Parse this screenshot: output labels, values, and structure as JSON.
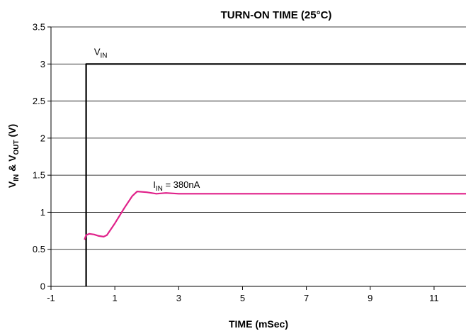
{
  "chart_data": {
    "type": "line",
    "title": "TURN-ON TIME (25°C)",
    "xlabel": "TIME (mSec)",
    "ylabel": {
      "parts": [
        {
          "text": "V",
          "sub": "IN"
        },
        {
          "text": " & V",
          "sub": "OUT"
        },
        {
          "text": " (V)",
          "sub": ""
        }
      ]
    },
    "xlim": [
      -1,
      12
    ],
    "ylim": [
      0,
      3.5
    ],
    "x_ticks": [
      -1,
      1,
      3,
      5,
      7,
      9,
      11
    ],
    "x_tick_labels": [
      "-1",
      "1",
      "3",
      "5",
      "7",
      "9",
      "11"
    ],
    "y_ticks": [
      0,
      0.5,
      1,
      1.5,
      2,
      2.5,
      3,
      3.5
    ],
    "y_tick_labels": [
      "0",
      "0.5",
      "1",
      "1.5",
      "2",
      "2.5",
      "3",
      "3.5"
    ],
    "grid": "horizontal",
    "series": [
      {
        "color": "#000000",
        "points": [
          [
            0.1,
            0
          ],
          [
            0.1,
            3.0
          ],
          [
            12,
            3.0
          ]
        ]
      },
      {
        "color": "#e0218a",
        "points": [
          [
            0.05,
            0.63
          ],
          [
            0.1,
            0.69
          ],
          [
            0.2,
            0.71
          ],
          [
            0.35,
            0.7
          ],
          [
            0.5,
            0.68
          ],
          [
            0.65,
            0.67
          ],
          [
            0.75,
            0.69
          ],
          [
            1.0,
            0.85
          ],
          [
            1.3,
            1.06
          ],
          [
            1.55,
            1.22
          ],
          [
            1.7,
            1.28
          ],
          [
            2.0,
            1.27
          ],
          [
            2.3,
            1.25
          ],
          [
            2.6,
            1.26
          ],
          [
            3.0,
            1.25
          ],
          [
            5.0,
            1.25
          ],
          [
            7.0,
            1.25
          ],
          [
            9.0,
            1.25
          ],
          [
            12.0,
            1.25
          ]
        ]
      }
    ],
    "annotations": [
      {
        "text": "V",
        "sub": "IN",
        "suffix": "",
        "x": 0.35,
        "y": 3.12
      },
      {
        "text": "I",
        "sub": "IN",
        "suffix": " = 380nA",
        "x": 2.2,
        "y": 1.33
      }
    ]
  }
}
